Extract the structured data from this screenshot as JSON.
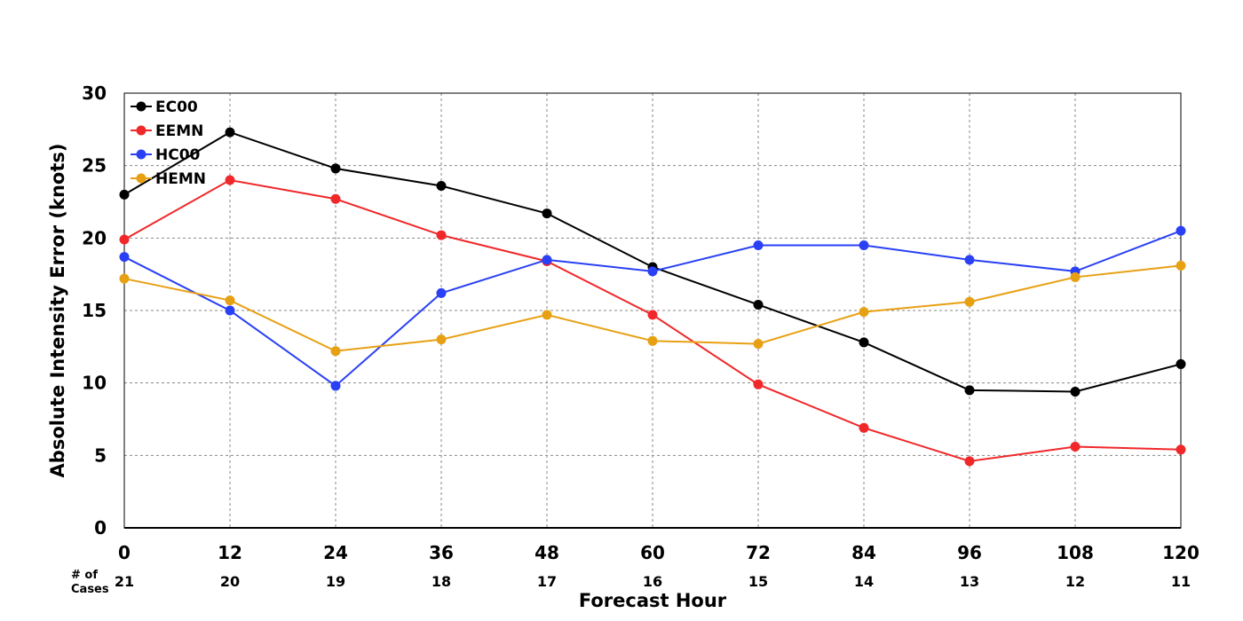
{
  "chart_data": {
    "type": "line",
    "xlabel": "Forecast Hour",
    "ylabel": "Absolute Intensity Error (knots)",
    "x": [
      0,
      12,
      24,
      36,
      48,
      60,
      72,
      84,
      96,
      108,
      120
    ],
    "xlim": [
      0,
      120
    ],
    "ylim": [
      0,
      30
    ],
    "yticks": [
      0,
      5,
      10,
      15,
      20,
      25,
      30
    ],
    "grid": true,
    "legend_position": "top-left",
    "cases_label": [
      "# of",
      "Cases"
    ],
    "cases": [
      21,
      20,
      19,
      18,
      17,
      16,
      15,
      14,
      13,
      12,
      11
    ],
    "series": [
      {
        "name": "EC00",
        "color": "#000000",
        "values": [
          23.0,
          27.3,
          24.8,
          23.6,
          21.7,
          18.0,
          15.4,
          12.8,
          9.5,
          9.4,
          11.3
        ]
      },
      {
        "name": "EEMN",
        "color": "#f0282a",
        "values": [
          19.9,
          24.0,
          22.7,
          20.2,
          18.4,
          14.7,
          9.9,
          6.9,
          4.6,
          5.6,
          5.4
        ]
      },
      {
        "name": "HC00",
        "color": "#2940f5",
        "values": [
          18.7,
          15.0,
          9.8,
          16.2,
          18.5,
          17.7,
          19.5,
          19.5,
          18.5,
          17.7,
          20.5
        ]
      },
      {
        "name": "HEMN",
        "color": "#e8a013",
        "values": [
          17.2,
          15.7,
          12.2,
          13.0,
          14.7,
          12.9,
          12.7,
          14.9,
          15.6,
          17.3,
          18.1
        ]
      }
    ]
  }
}
